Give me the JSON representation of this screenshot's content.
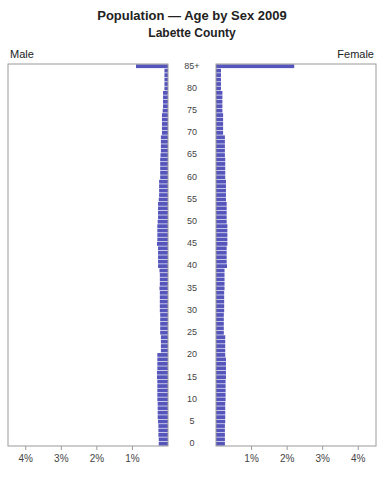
{
  "chart_data": {
    "type": "bar",
    "orientation": "horizontal",
    "title": "Population — Age by Sex 2009",
    "subtitle": "Labette County",
    "color": "#5555bb",
    "grid": false,
    "xlim": [
      0,
      4.5
    ],
    "xticks": [
      {
        "value": 1,
        "label": "1%"
      },
      {
        "value": 2,
        "label": "2%"
      },
      {
        "value": 3,
        "label": "3%"
      },
      {
        "value": 4,
        "label": "4%"
      }
    ],
    "categories": [
      "0",
      null,
      null,
      null,
      null,
      "5",
      null,
      null,
      null,
      null,
      "10",
      null,
      null,
      null,
      null,
      "15",
      null,
      null,
      null,
      null,
      "20",
      null,
      null,
      null,
      null,
      "25",
      null,
      null,
      null,
      null,
      "30",
      null,
      null,
      null,
      null,
      "35",
      null,
      null,
      null,
      null,
      "40",
      null,
      null,
      null,
      null,
      "45",
      null,
      null,
      null,
      null,
      "50",
      null,
      null,
      null,
      null,
      "55",
      null,
      null,
      null,
      null,
      "60",
      null,
      null,
      null,
      null,
      "65",
      null,
      null,
      null,
      null,
      "70",
      null,
      null,
      null,
      null,
      "75",
      null,
      null,
      null,
      null,
      "80",
      null,
      null,
      null,
      null,
      "85+"
    ],
    "series": [
      {
        "name": "Male",
        "values": [
          0.26,
          0.26,
          0.27,
          0.27,
          0.27,
          0.28,
          0.29,
          0.29,
          0.29,
          0.29,
          0.3,
          0.3,
          0.3,
          0.3,
          0.3,
          0.31,
          0.31,
          0.3,
          0.3,
          0.3,
          0.3,
          0.2,
          0.2,
          0.2,
          0.2,
          0.22,
          0.22,
          0.22,
          0.22,
          0.22,
          0.23,
          0.23,
          0.23,
          0.23,
          0.23,
          0.24,
          0.23,
          0.23,
          0.23,
          0.24,
          0.28,
          0.28,
          0.28,
          0.28,
          0.28,
          0.31,
          0.3,
          0.3,
          0.3,
          0.3,
          0.29,
          0.28,
          0.28,
          0.28,
          0.28,
          0.26,
          0.25,
          0.25,
          0.25,
          0.25,
          0.22,
          0.22,
          0.22,
          0.22,
          0.22,
          0.21,
          0.2,
          0.2,
          0.2,
          0.2,
          0.17,
          0.17,
          0.17,
          0.17,
          0.17,
          0.15,
          0.14,
          0.14,
          0.14,
          0.14,
          0.1,
          0.1,
          0.1,
          0.1,
          0.1,
          0.9
        ]
      },
      {
        "name": "Female",
        "values": [
          0.25,
          0.25,
          0.25,
          0.25,
          0.25,
          0.26,
          0.26,
          0.26,
          0.26,
          0.26,
          0.27,
          0.27,
          0.27,
          0.27,
          0.27,
          0.28,
          0.28,
          0.28,
          0.28,
          0.28,
          0.26,
          0.26,
          0.26,
          0.26,
          0.26,
          0.22,
          0.22,
          0.22,
          0.22,
          0.22,
          0.23,
          0.23,
          0.23,
          0.23,
          0.23,
          0.24,
          0.24,
          0.24,
          0.24,
          0.24,
          0.31,
          0.3,
          0.3,
          0.3,
          0.3,
          0.32,
          0.32,
          0.32,
          0.32,
          0.32,
          0.3,
          0.3,
          0.3,
          0.3,
          0.3,
          0.28,
          0.28,
          0.28,
          0.28,
          0.28,
          0.26,
          0.26,
          0.26,
          0.26,
          0.26,
          0.25,
          0.25,
          0.25,
          0.25,
          0.25,
          0.2,
          0.2,
          0.2,
          0.2,
          0.2,
          0.18,
          0.18,
          0.18,
          0.18,
          0.18,
          0.14,
          0.14,
          0.14,
          0.14,
          0.14,
          2.2
        ]
      }
    ]
  }
}
